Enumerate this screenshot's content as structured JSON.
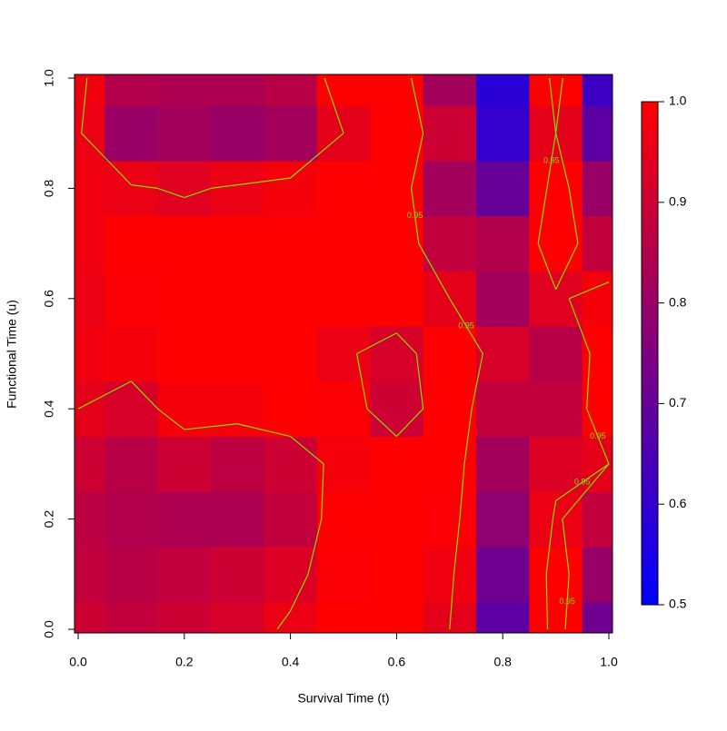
{
  "chart_data": {
    "type": "heatmap",
    "x_label": "Survival Time (t)",
    "y_label": "Functional Time (u)",
    "x": [
      0,
      0.1,
      0.2,
      0.3,
      0.4,
      0.5,
      0.6,
      0.7,
      0.8,
      0.9,
      1
    ],
    "y": [
      0,
      0.1,
      0.2,
      0.3,
      0.4,
      0.5,
      0.6,
      0.7,
      0.8,
      0.9,
      1
    ],
    "z": [
      [
        0.9,
        0.88,
        0.9,
        0.92,
        0.96,
        1,
        1,
        0.95,
        0.68,
        1,
        0.72
      ],
      [
        0.88,
        0.86,
        0.88,
        0.9,
        0.93,
        0.99,
        1,
        0.97,
        0.72,
        1,
        0.8
      ],
      [
        0.87,
        0.85,
        0.84,
        0.84,
        0.88,
        1,
        1,
        0.99,
        0.78,
        0.96,
        0.88
      ],
      [
        0.9,
        0.86,
        0.9,
        0.87,
        0.9,
        0.98,
        1,
        1,
        0.82,
        0.93,
        0.95
      ],
      [
        0.95,
        0.92,
        0.98,
        0.98,
        1,
        0.99,
        0.9,
        1,
        0.88,
        0.88,
        1
      ],
      [
        0.97,
        0.98,
        1,
        1,
        1,
        0.96,
        0.92,
        1,
        0.92,
        0.86,
        1
      ],
      [
        0.96,
        0.99,
        1,
        1,
        1,
        1,
        1,
        0.95,
        0.82,
        0.94,
        0.98
      ],
      [
        0.97,
        1,
        1,
        1,
        1,
        1,
        1,
        0.88,
        0.85,
        1,
        0.88
      ],
      [
        0.97,
        0.96,
        0.94,
        0.96,
        0.98,
        1,
        1,
        0.82,
        0.7,
        1,
        0.8
      ],
      [
        0.96,
        0.8,
        0.82,
        0.8,
        0.82,
        0.95,
        1,
        0.9,
        0.6,
        0.95,
        0.68
      ],
      [
        0.97,
        0.85,
        0.84,
        0.84,
        0.86,
        1,
        1,
        0.82,
        0.58,
        1,
        0.62
      ]
    ],
    "xlim": [
      0,
      1
    ],
    "ylim": [
      0,
      1
    ],
    "xticks": [
      {
        "value": 0,
        "label": "0.0"
      },
      0.2,
      0.4,
      0.6,
      0.8,
      {
        "value": 1,
        "label": "1.0"
      }
    ],
    "yticks": [
      {
        "value": 0,
        "label": "0.0"
      },
      0.2,
      0.4,
      0.6,
      0.8,
      {
        "value": 1,
        "label": "1.0"
      }
    ],
    "zlim": [
      0.5,
      1
    ],
    "zticks": [
      0.5,
      0.6,
      0.7,
      0.8,
      0.9,
      {
        "value": 1,
        "label": "1.0"
      }
    ],
    "color_low": "#0000ff",
    "color_high": "#ff0000",
    "contour_levels": [
      0.95
    ],
    "contour_color": "#7fdf00"
  }
}
